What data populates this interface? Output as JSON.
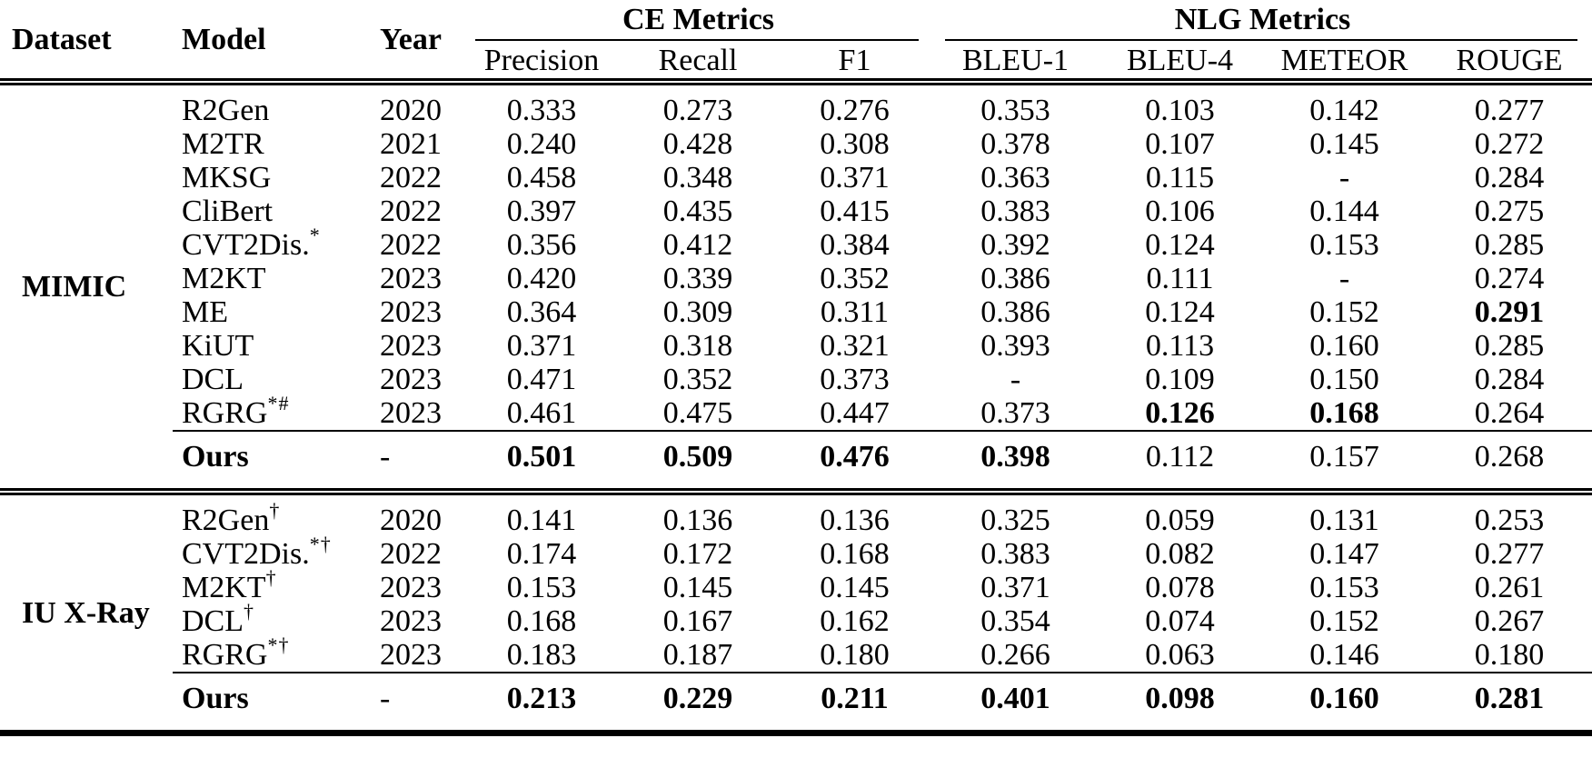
{
  "table": {
    "column_headers": {
      "dataset": "Dataset",
      "model": "Model",
      "year": "Year",
      "ce_group": "CE Metrics",
      "nlg_group": "NLG Metrics",
      "metrics": [
        "Precision",
        "Recall",
        "F1",
        "BLEU-1",
        "BLEU-4",
        "METEOR",
        "ROUGE"
      ]
    },
    "sections": [
      {
        "dataset": "MIMIC",
        "rows": [
          {
            "model": "R2Gen",
            "sup": "",
            "year": "2020",
            "values": [
              "0.333",
              "0.273",
              "0.276",
              "0.353",
              "0.103",
              "0.142",
              "0.277"
            ],
            "bold": []
          },
          {
            "model": "M2TR",
            "sup": "",
            "year": "2021",
            "values": [
              "0.240",
              "0.428",
              "0.308",
              "0.378",
              "0.107",
              "0.145",
              "0.272"
            ],
            "bold": []
          },
          {
            "model": "MKSG",
            "sup": "",
            "year": "2022",
            "values": [
              "0.458",
              "0.348",
              "0.371",
              "0.363",
              "0.115",
              "-",
              "0.284"
            ],
            "bold": []
          },
          {
            "model": "CliBert",
            "sup": "",
            "year": "2022",
            "values": [
              "0.397",
              "0.435",
              "0.415",
              "0.383",
              "0.106",
              "0.144",
              "0.275"
            ],
            "bold": []
          },
          {
            "model": "CVT2Dis.",
            "sup": "*",
            "year": "2022",
            "values": [
              "0.356",
              "0.412",
              "0.384",
              "0.392",
              "0.124",
              "0.153",
              "0.285"
            ],
            "bold": []
          },
          {
            "model": "M2KT",
            "sup": "",
            "year": "2023",
            "values": [
              "0.420",
              "0.339",
              "0.352",
              "0.386",
              "0.111",
              "-",
              "0.274"
            ],
            "bold": []
          },
          {
            "model": "ME",
            "sup": "",
            "year": "2023",
            "values": [
              "0.364",
              "0.309",
              "0.311",
              "0.386",
              "0.124",
              "0.152",
              "0.291"
            ],
            "bold": [
              6
            ]
          },
          {
            "model": "KiUT",
            "sup": "",
            "year": "2023",
            "values": [
              "0.371",
              "0.318",
              "0.321",
              "0.393",
              "0.113",
              "0.160",
              "0.285"
            ],
            "bold": []
          },
          {
            "model": "DCL",
            "sup": "",
            "year": "2023",
            "values": [
              "0.471",
              "0.352",
              "0.373",
              "-",
              "0.109",
              "0.150",
              "0.284"
            ],
            "bold": []
          },
          {
            "model": "RGRG",
            "sup": "*#",
            "year": "2023",
            "values": [
              "0.461",
              "0.475",
              "0.447",
              "0.373",
              "0.126",
              "0.168",
              "0.264"
            ],
            "bold": [
              4,
              5
            ]
          }
        ],
        "ours": {
          "model": "Ours",
          "year": "-",
          "values": [
            "0.501",
            "0.509",
            "0.476",
            "0.398",
            "0.112",
            "0.157",
            "0.268"
          ],
          "bold": [
            0,
            1,
            2,
            3
          ]
        }
      },
      {
        "dataset": "IU X-Ray",
        "rows": [
          {
            "model": "R2Gen",
            "sup": "†",
            "year": "2020",
            "values": [
              "0.141",
              "0.136",
              "0.136",
              "0.325",
              "0.059",
              "0.131",
              "0.253"
            ],
            "bold": []
          },
          {
            "model": "CVT2Dis.",
            "sup": "*†",
            "year": "2022",
            "values": [
              "0.174",
              "0.172",
              "0.168",
              "0.383",
              "0.082",
              "0.147",
              "0.277"
            ],
            "bold": []
          },
          {
            "model": "M2KT",
            "sup": "†",
            "year": "2023",
            "values": [
              "0.153",
              "0.145",
              "0.145",
              "0.371",
              "0.078",
              "0.153",
              "0.261"
            ],
            "bold": []
          },
          {
            "model": "DCL",
            "sup": "†",
            "year": "2023",
            "values": [
              "0.168",
              "0.167",
              "0.162",
              "0.354",
              "0.074",
              "0.152",
              "0.267"
            ],
            "bold": []
          },
          {
            "model": "RGRG",
            "sup": "*†",
            "year": "2023",
            "values": [
              "0.183",
              "0.187",
              "0.180",
              "0.266",
              "0.063",
              "0.146",
              "0.180"
            ],
            "bold": []
          }
        ],
        "ours": {
          "model": "Ours",
          "year": "-",
          "values": [
            "0.213",
            "0.229",
            "0.211",
            "0.401",
            "0.098",
            "0.160",
            "0.281"
          ],
          "bold": [
            0,
            1,
            2,
            3,
            4,
            5,
            6
          ]
        }
      }
    ]
  }
}
